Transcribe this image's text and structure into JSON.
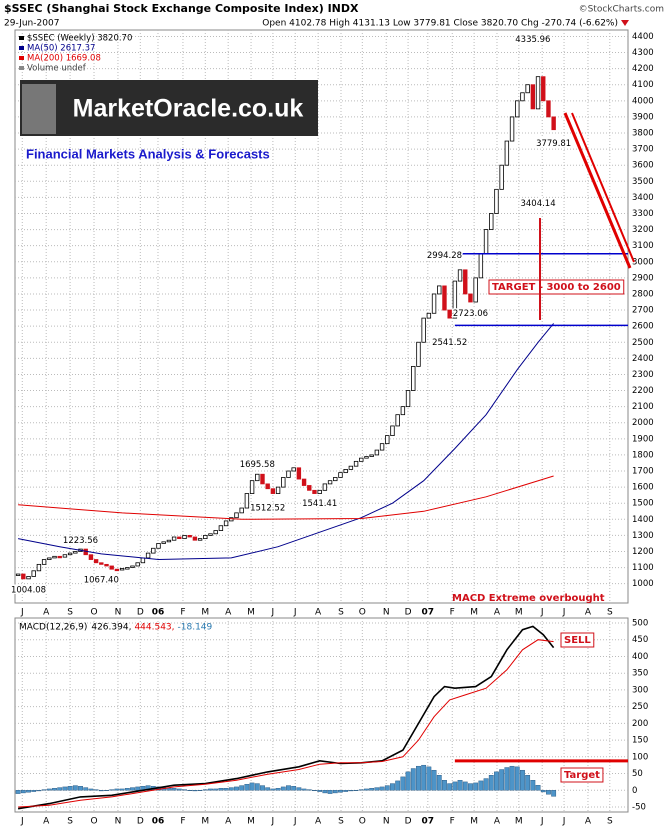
{
  "header": {
    "title": "$SSEC (Shanghai Stock Exchange Composite Index) INDX",
    "source": "©StockCharts.com",
    "date": "29-Jun-2007",
    "quote": "Open 4102.78 High 4131.13 Low 3779.81 Close 3820.70 Chg -270.74 (-6.62%)"
  },
  "logo": {
    "name": "MarketOracle.co.uk",
    "tagline": "Financial Markets Analysis & Forecasts"
  },
  "chart_data": [
    {
      "type": "candlestick",
      "xlim": [
        -0.6,
        117.3
      ],
      "ylim": [
        880,
        4440
      ],
      "yticks": [
        1000,
        1100,
        1200,
        1300,
        1400,
        1500,
        1600,
        1700,
        1800,
        1900,
        2000,
        2100,
        2200,
        2300,
        2400,
        2500,
        2600,
        2700,
        2800,
        2900,
        3000,
        3100,
        3200,
        3300,
        3400,
        3500,
        3600,
        3700,
        3800,
        3900,
        4000,
        4100,
        4200,
        4300,
        4400
      ],
      "xticks": [
        {
          "value": 0.8,
          "label": "J"
        },
        {
          "value": 5.4,
          "label": "A"
        },
        {
          "value": 10.0,
          "label": "S"
        },
        {
          "value": 14.6,
          "label": "O"
        },
        {
          "value": 19.2,
          "label": "N"
        },
        {
          "value": 23.5,
          "label": "D"
        },
        {
          "value": 26.9,
          "label": "06"
        },
        {
          "value": 31.7,
          "label": "F"
        },
        {
          "value": 36.0,
          "label": "M"
        },
        {
          "value": 40.4,
          "label": "A"
        },
        {
          "value": 44.8,
          "label": "M"
        },
        {
          "value": 49.0,
          "label": "J"
        },
        {
          "value": 53.3,
          "label": "J"
        },
        {
          "value": 57.7,
          "label": "A"
        },
        {
          "value": 62.1,
          "label": "S"
        },
        {
          "value": 66.2,
          "label": "O"
        },
        {
          "value": 70.8,
          "label": "N"
        },
        {
          "value": 75.0,
          "label": "D"
        },
        {
          "value": 78.8,
          "label": "07"
        },
        {
          "value": 83.5,
          "label": "F"
        },
        {
          "value": 87.7,
          "label": "M"
        },
        {
          "value": 92.1,
          "label": "A"
        },
        {
          "value": 96.3,
          "label": "M"
        },
        {
          "value": 100.8,
          "label": "J"
        },
        {
          "value": 105.0,
          "label": "J"
        },
        {
          "value": 109.6,
          "label": "A"
        },
        {
          "value": 113.8,
          "label": "S"
        }
      ],
      "series": [
        {
          "name": "$SSEC (Weekly) 3820.70",
          "type": "candle",
          "color": "#000000",
          "down_color": "#d0101a",
          "values": [
            1060,
            1030,
            1045,
            1080,
            1120,
            1150,
            1160,
            1170,
            1165,
            1180,
            1190,
            1200,
            1215,
            1180,
            1150,
            1130,
            1120,
            1110,
            1090,
            1085,
            1095,
            1100,
            1110,
            1130,
            1160,
            1190,
            1220,
            1250,
            1260,
            1270,
            1290,
            1280,
            1300,
            1290,
            1270,
            1280,
            1300,
            1310,
            1330,
            1360,
            1390,
            1410,
            1440,
            1470,
            1560,
            1640,
            1680,
            1620,
            1590,
            1560,
            1600,
            1660,
            1700,
            1720,
            1650,
            1610,
            1580,
            1560,
            1580,
            1620,
            1640,
            1660,
            1690,
            1710,
            1730,
            1760,
            1780,
            1790,
            1800,
            1830,
            1870,
            1920,
            1980,
            2050,
            2100,
            2200,
            2350,
            2500,
            2650,
            2680,
            2800,
            2850,
            2700,
            2650,
            2880,
            2950,
            2800,
            2750,
            2900,
            3050,
            3200,
            3300,
            3450,
            3600,
            3750,
            3900,
            4000,
            4050,
            4100,
            3950,
            4150,
            4000,
            3900,
            3820.7
          ]
        },
        {
          "name": "MA(50) 2617.37",
          "type": "line",
          "color": "#00008b",
          "x": [
            0,
            8,
            16,
            27,
            41,
            50,
            58,
            66,
            72,
            78,
            84,
            90,
            96,
            100,
            103
          ],
          "values": [
            1280,
            1230,
            1185,
            1150,
            1160,
            1230,
            1320,
            1410,
            1500,
            1640,
            1840,
            2050,
            2330,
            2500,
            2617.37
          ]
        },
        {
          "name": "MA(200) 1669.08",
          "type": "line",
          "color": "#e00000",
          "x": [
            0,
            20,
            43,
            66,
            78,
            90,
            103
          ],
          "values": [
            1490,
            1440,
            1400,
            1405,
            1450,
            1540,
            1669.08
          ]
        }
      ],
      "notes": [
        "Volume undef"
      ],
      "annotations": [
        {
          "x": 2,
          "value": 1004.08,
          "label": "1004.08"
        },
        {
          "x": 12,
          "value": 1223.56,
          "label": "1223.56"
        },
        {
          "x": 16,
          "value": 1067.4,
          "label": "1067.40"
        },
        {
          "x": 46,
          "value": 1695.58,
          "label": "1695.58"
        },
        {
          "x": 48,
          "value": 1512.52,
          "label": "1512.52"
        },
        {
          "x": 58,
          "value": 1541.41,
          "label": "1541.41"
        },
        {
          "x": 82,
          "value": 2994.28,
          "label": "2994.28"
        },
        {
          "x": 83,
          "value": 2541.52,
          "label": "2541.52"
        },
        {
          "x": 87,
          "value": 2723.06,
          "label": "2723.06"
        },
        {
          "x": 99,
          "value": 4335.96,
          "label": "4335.96"
        },
        {
          "x": 100,
          "value": 3404.14,
          "label": "3404.14"
        },
        {
          "x": 103,
          "value": 3779.81,
          "label": "3779.81"
        }
      ],
      "hlines": [
        {
          "value": 3050,
          "from": 84,
          "color": "#0000cc"
        },
        {
          "value": 2605,
          "from": 84,
          "color": "#0000cc"
        }
      ],
      "callouts": [
        "TARGET - 3000 to 2600",
        "MACD Extreme overbought"
      ]
    },
    {
      "type": "macd",
      "xlim": [
        -0.6,
        117.3
      ],
      "ylim": [
        -65,
        515
      ],
      "yticks": [
        -50,
        0,
        50,
        100,
        150,
        200,
        250,
        300,
        350,
        400,
        450,
        500
      ],
      "xticks": [
        {
          "value": 0.8,
          "label": "J"
        },
        {
          "value": 5.4,
          "label": "A"
        },
        {
          "value": 10.0,
          "label": "S"
        },
        {
          "value": 14.6,
          "label": "O"
        },
        {
          "value": 19.2,
          "label": "N"
        },
        {
          "value": 23.5,
          "label": "D"
        },
        {
          "value": 26.9,
          "label": "06"
        },
        {
          "value": 31.7,
          "label": "F"
        },
        {
          "value": 36.0,
          "label": "M"
        },
        {
          "value": 40.4,
          "label": "A"
        },
        {
          "value": 44.8,
          "label": "M"
        },
        {
          "value": 49.0,
          "label": "J"
        },
        {
          "value": 53.3,
          "label": "J"
        },
        {
          "value": 57.7,
          "label": "A"
        },
        {
          "value": 62.1,
          "label": "S"
        },
        {
          "value": 66.2,
          "label": "O"
        },
        {
          "value": 70.8,
          "label": "N"
        },
        {
          "value": 75.0,
          "label": "D"
        },
        {
          "value": 78.8,
          "label": "07"
        },
        {
          "value": 83.5,
          "label": "F"
        },
        {
          "value": 87.7,
          "label": "M"
        },
        {
          "value": 92.1,
          "label": "A"
        },
        {
          "value": 96.3,
          "label": "M"
        },
        {
          "value": 100.8,
          "label": "J"
        },
        {
          "value": 105.0,
          "label": "J"
        },
        {
          "value": 109.6,
          "label": "A"
        },
        {
          "value": 113.8,
          "label": "S"
        }
      ],
      "label": "MACD(12,26,9)",
      "readout": [
        "426.394,",
        "444.543,",
        "-18.149"
      ],
      "series": [
        {
          "type": "bar",
          "color": "#4d94c8",
          "values": [
            -10,
            -8,
            -6,
            -4,
            -2,
            2,
            4,
            6,
            8,
            10,
            12,
            14,
            12,
            8,
            4,
            2,
            -2,
            0,
            2,
            4,
            4,
            6,
            8,
            10,
            12,
            14,
            12,
            10,
            8,
            6,
            6,
            4,
            2,
            0,
            -2,
            0,
            2,
            4,
            4,
            6,
            6,
            8,
            10,
            14,
            18,
            22,
            20,
            14,
            8,
            4,
            6,
            10,
            14,
            12,
            8,
            4,
            2,
            0,
            -4,
            -8,
            -10,
            -8,
            -6,
            -4,
            -2,
            0,
            2,
            4,
            6,
            8,
            10,
            14,
            20,
            28,
            40,
            55,
            65,
            72,
            75,
            70,
            60,
            45,
            30,
            20,
            25,
            30,
            25,
            20,
            22,
            28,
            35,
            45,
            55,
            62,
            68,
            72,
            70,
            60,
            45,
            30,
            15,
            -5,
            -12,
            -18.149
          ]
        },
        {
          "type": "line",
          "color": "#000000",
          "width": 1.6,
          "x": [
            0,
            6,
            12,
            18,
            24,
            30,
            36,
            42,
            48,
            54,
            58,
            62,
            66,
            70,
            74,
            77,
            80,
            82,
            84,
            88,
            91,
            94,
            97,
            99,
            101,
            103
          ],
          "values": [
            -55,
            -40,
            -20,
            -15,
            0,
            15,
            20,
            35,
            55,
            70,
            88,
            80,
            82,
            88,
            120,
            200,
            280,
            310,
            305,
            310,
            340,
            420,
            480,
            490,
            465,
            426.394
          ]
        },
        {
          "type": "line",
          "color": "#e00000",
          "width": 1,
          "x": [
            0,
            6,
            12,
            18,
            24,
            30,
            36,
            42,
            48,
            54,
            58,
            62,
            66,
            70,
            74,
            77,
            80,
            83,
            86,
            90,
            94,
            97,
            100,
            103
          ],
          "values": [
            -50,
            -45,
            -30,
            -20,
            -5,
            10,
            18,
            30,
            48,
            62,
            78,
            82,
            82,
            86,
            100,
            150,
            220,
            270,
            285,
            305,
            360,
            420,
            450,
            444.543
          ]
        }
      ],
      "hlines": [
        {
          "value": 88,
          "from": 84,
          "color": "#e00000"
        }
      ],
      "callouts": [
        "SELL",
        "Target"
      ]
    }
  ]
}
